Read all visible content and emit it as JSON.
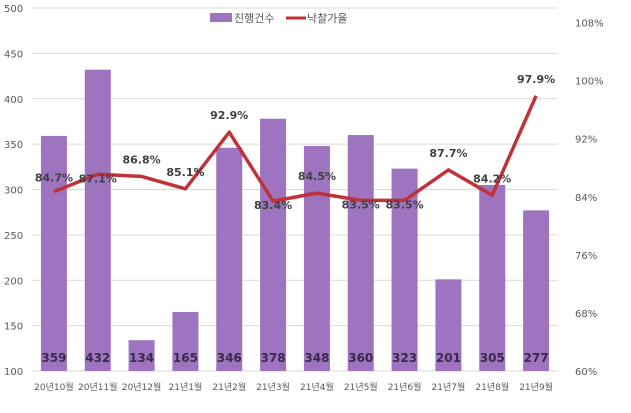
{
  "chart_data": {
    "type": "bar+line",
    "categories": [
      "20년10월",
      "20년11월",
      "20년12월",
      "21년1월",
      "21년2월",
      "21년3월",
      "21년4월",
      "21년5월",
      "21년6월",
      "21년7월",
      "21년8월",
      "21년9월"
    ],
    "series": [
      {
        "name": "진행건수",
        "type": "bar",
        "axis": "left",
        "values": [
          359,
          432,
          134,
          165,
          346,
          378,
          348,
          360,
          323,
          201,
          305,
          277
        ],
        "labels": [
          "359",
          "432",
          "134",
          "165",
          "346",
          "378",
          "348",
          "360",
          "323",
          "201",
          "305",
          "277"
        ]
      },
      {
        "name": "낙찰가율",
        "type": "line",
        "axis": "right",
        "values": [
          84.7,
          87.1,
          86.8,
          85.1,
          92.9,
          83.4,
          84.5,
          83.5,
          83.5,
          87.7,
          84.2,
          97.9
        ],
        "labels": [
          "84.7%",
          "87.1%",
          "86.8%",
          "85.1%",
          "92.9%",
          "83.4%",
          "84.5%",
          "83.5%",
          "83.5%",
          "87.7%",
          "84.2%",
          "97.9%"
        ]
      }
    ],
    "y_left": {
      "lim": [
        100,
        500
      ],
      "ticks": [
        "100",
        "150",
        "200",
        "250",
        "300",
        "350",
        "400",
        "450",
        "500"
      ]
    },
    "y_right": {
      "lim": [
        60,
        110
      ],
      "ticks": [
        "60%",
        "68%",
        "76%",
        "84%",
        "92%",
        "100%",
        "108%"
      ]
    },
    "grid": true,
    "legend": "top-center",
    "colors": {
      "bar": "#9E74C0",
      "line": "#C0323A",
      "grid": "#D9D9D9",
      "text": "#595959",
      "label": "#404040"
    }
  }
}
